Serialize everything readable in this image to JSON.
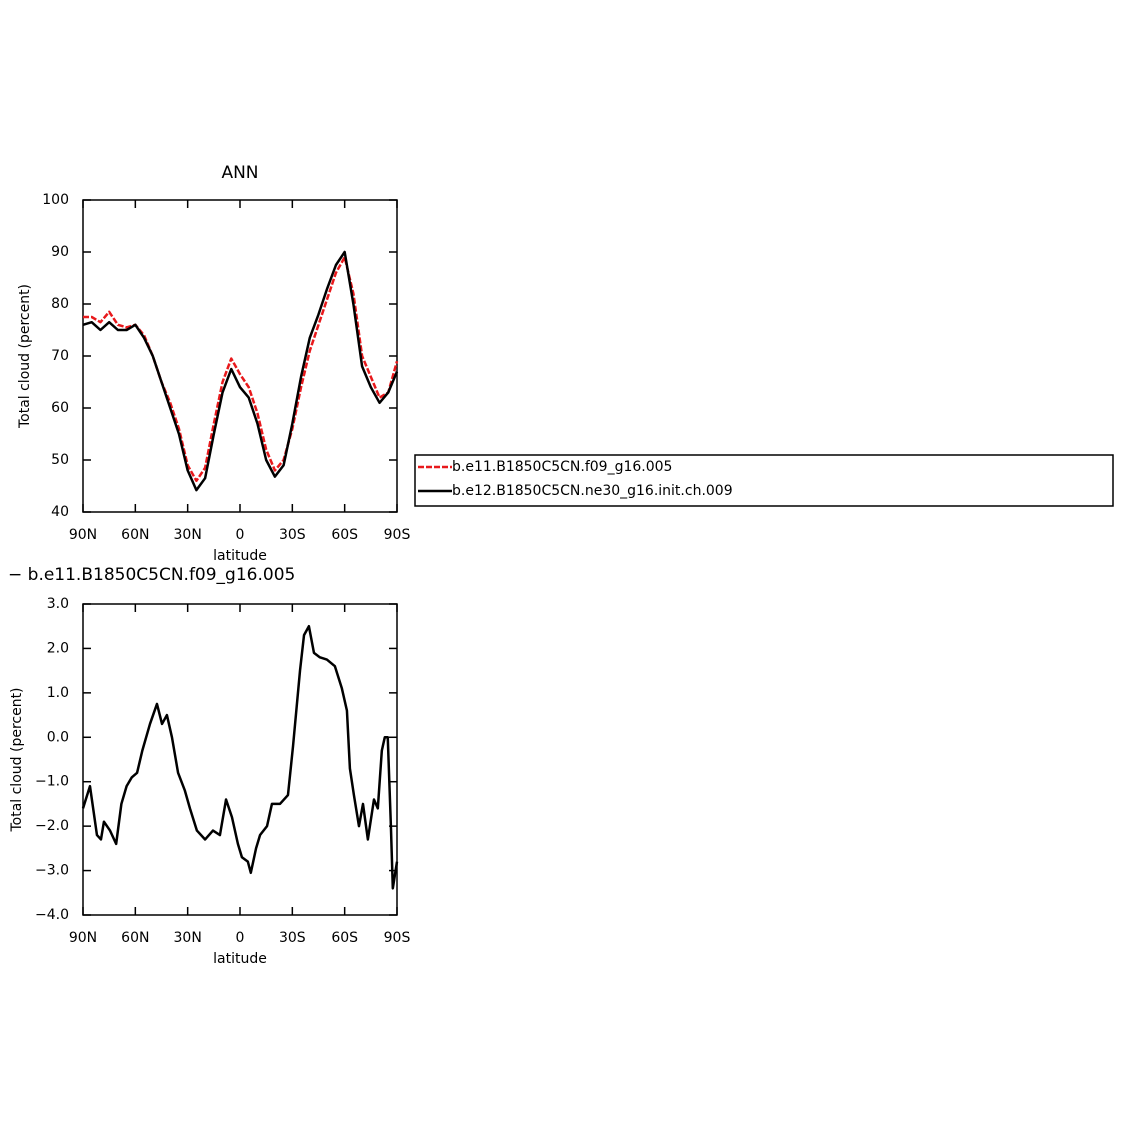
{
  "chart_data": [
    {
      "type": "line",
      "title": "ANN",
      "xlabel": "latitude",
      "ylabel": "Total cloud (percent)",
      "x": [
        90,
        85,
        80,
        75,
        70,
        65,
        60,
        55,
        50,
        45,
        40,
        35,
        30,
        25,
        20,
        15,
        10,
        5,
        0,
        -5,
        -10,
        -15,
        -20,
        -25,
        -30,
        -35,
        -40,
        -45,
        -50,
        -55,
        -60,
        -65,
        -70,
        -75,
        -80,
        -85,
        -90
      ],
      "series": [
        {
          "name": "b.e11.B1850C5CN.f09_g16.005",
          "color": "#e8191c",
          "style": "dashed",
          "values": [
            77.5,
            77.5,
            76.5,
            78.5,
            76,
            75.5,
            76,
            74,
            70,
            65,
            61,
            56,
            49,
            46,
            48.5,
            57,
            65,
            69.5,
            66.5,
            64,
            59,
            52,
            48,
            50,
            56,
            64,
            71,
            76,
            81,
            86,
            89,
            82,
            70,
            66,
            62,
            63,
            69
          ]
        },
        {
          "name": "b.e12.B1850C5CN.ne30_g16.init.ch.009",
          "color": "#000000",
          "style": "solid",
          "values": [
            76,
            76.5,
            75,
            76.5,
            75,
            75,
            76,
            73.5,
            70,
            65,
            60,
            55,
            48,
            44.2,
            46.5,
            55,
            63,
            67.5,
            64,
            62,
            57,
            50,
            46.8,
            49,
            57,
            66,
            73.5,
            78,
            83,
            87.5,
            90,
            80,
            68,
            64,
            61,
            63,
            67
          ]
        }
      ],
      "xlim": [
        90,
        -90
      ],
      "xticks": [
        {
          "value": 90,
          "label": "90N"
        },
        {
          "value": 60,
          "label": "60N"
        },
        {
          "value": 30,
          "label": "30N"
        },
        0,
        {
          "value": -30,
          "label": "30S"
        },
        {
          "value": -60,
          "label": "60S"
        },
        {
          "value": -90,
          "label": "90S"
        }
      ],
      "ylim": [
        40,
        100
      ],
      "yticks": [
        40,
        50,
        60,
        70,
        80,
        90,
        100
      ],
      "legend": "right"
    },
    {
      "type": "line",
      "title": "− b.e11.B1850C5CN.f09_g16.005",
      "xlabel": "latitude",
      "ylabel": "Total cloud (percent)",
      "x": [
        90,
        86,
        82,
        79.7,
        78,
        74.5,
        71,
        68,
        65,
        62,
        59,
        56,
        51.6,
        47.6,
        44.7,
        41.9,
        39,
        35.5,
        31.6,
        28.7,
        24.7,
        20,
        15.5,
        11.5,
        8,
        4.6,
        1.2,
        -1.1,
        -4.5,
        -6.2,
        -9.2,
        -11.5,
        -15.5,
        -18.3,
        -22.9,
        -27.5,
        -30.4,
        -34.4,
        -36.7,
        -39.5,
        -42.4,
        -45.8,
        -49.8,
        -54.4,
        -58.4,
        -61.3,
        -63,
        -65.3,
        -68.2,
        -70.5,
        -73.3,
        -76.8,
        -79,
        -81.3,
        -83,
        -84.7,
        -86.5,
        -87.6,
        -90
      ],
      "series": [
        {
          "color": "#000000",
          "style": "solid",
          "values": [
            -1.6,
            -1.1,
            -2.2,
            -2.3,
            -1.9,
            -2.1,
            -2.4,
            -1.5,
            -1.1,
            -0.9,
            -0.8,
            -0.3,
            0.3,
            0.75,
            0.3,
            0.5,
            0,
            -0.8,
            -1.2,
            -1.6,
            -2.1,
            -2.3,
            -2.1,
            -2.2,
            -1.4,
            -1.8,
            -2.4,
            -2.7,
            -2.8,
            -3.05,
            -2.5,
            -2.2,
            -2.0,
            -1.5,
            -1.5,
            -1.3,
            -0.2,
            1.5,
            2.3,
            2.5,
            1.9,
            1.8,
            1.75,
            1.6,
            1.1,
            0.6,
            -0.7,
            -1.3,
            -2.0,
            -1.5,
            -2.3,
            -1.4,
            -1.6,
            -0.3,
            0.0,
            0.0,
            -2.0,
            -3.4,
            -2.8
          ]
        }
      ],
      "xlim": [
        90,
        -90
      ],
      "xticks": [
        {
          "value": 90,
          "label": "90N"
        },
        {
          "value": 60,
          "label": "60N"
        },
        {
          "value": 30,
          "label": "30N"
        },
        0,
        {
          "value": -30,
          "label": "30S"
        },
        {
          "value": -60,
          "label": "60S"
        },
        {
          "value": -90,
          "label": "90S"
        }
      ],
      "ylim": [
        -4,
        3
      ],
      "yticks": [
        {
          "value": -4,
          "label": "−4.0"
        },
        {
          "value": -3,
          "label": "−3.0"
        },
        {
          "value": -2,
          "label": "−2.0"
        },
        {
          "value": -1,
          "label": "−1.0"
        },
        {
          "value": 0,
          "label": "0.0"
        },
        {
          "value": 1,
          "label": "1.0"
        },
        {
          "value": 2,
          "label": "2.0"
        },
        {
          "value": 3,
          "label": "3.0"
        }
      ]
    }
  ]
}
